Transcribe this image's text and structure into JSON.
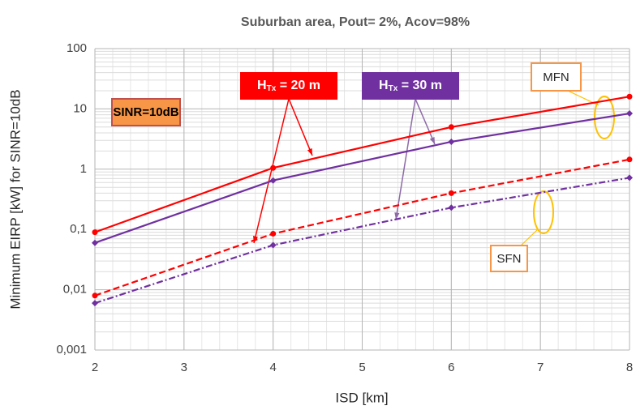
{
  "chart_data": {
    "type": "line",
    "title": "Suburban area, Pout= 2%, Acov=98%",
    "x_label": "ISD [km]",
    "y_label": "Minimum EIRP [kW] for SINR=10dB",
    "x": [
      2,
      4,
      6,
      8
    ],
    "series": [
      {
        "color": "#ff0000",
        "style": "solid",
        "marker": "circle",
        "values": [
          0.09,
          1.05,
          5.0,
          16
        ]
      },
      {
        "color": "#7030a0",
        "style": "solid",
        "marker": "diamond",
        "values": [
          0.06,
          0.65,
          2.85,
          8.4
        ]
      },
      {
        "color": "#ff0000",
        "style": "dash",
        "marker": "circle",
        "values": [
          0.008,
          0.085,
          0.4,
          1.45
        ]
      },
      {
        "color": "#7030a0",
        "style": "dashdot",
        "marker": "diamond",
        "values": [
          0.006,
          0.055,
          0.23,
          0.72
        ]
      }
    ],
    "xlim": [
      2,
      8
    ],
    "xticks": [
      2,
      3,
      4,
      5,
      6,
      7,
      8
    ],
    "ylim": [
      0.001,
      100
    ],
    "yticks": [
      {
        "value": 0.001,
        "label": "0,001"
      },
      {
        "value": 0.01,
        "label": "0,01"
      },
      {
        "value": 0.1,
        "label": "0,1"
      },
      1,
      10,
      100
    ],
    "y_scale": "log",
    "grid": true,
    "annotations": {
      "sinr": "SINR=10dB",
      "h20": [
        "H",
        "Tx",
        " = 20 m"
      ],
      "h30": [
        "H",
        "Tx",
        " = 30 m"
      ],
      "mfn": "MFN",
      "sfn": "SFN"
    }
  }
}
